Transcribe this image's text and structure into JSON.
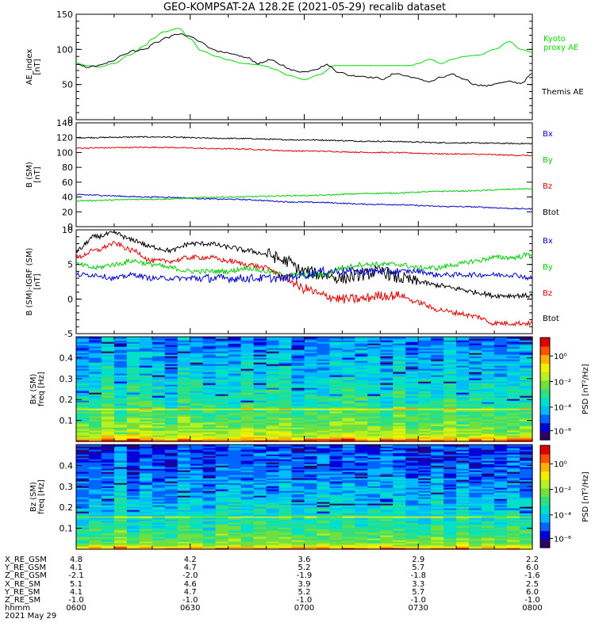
{
  "title": "GEO-KOMPSAT-2A 128.2E (2021-05-29) recalib dataset",
  "colors": {
    "black": "#000000",
    "red": "#dd0000",
    "blue": "#0000cc",
    "green": "#00cc00",
    "kyoto_green": "#00dd00"
  },
  "chart_data": [
    {
      "type": "line",
      "panel": "ae",
      "ylabel": "AE_index\n[nT]",
      "ylim": [
        0,
        150
      ],
      "yticks": [
        "0",
        "50",
        "100",
        "150"
      ],
      "x": [
        "0600",
        "0630",
        "0700",
        "0730",
        "0800"
      ],
      "series": [
        {
          "name": "Kyoto\nproxy AE",
          "color": "#00dd00",
          "t": [
            0,
            3,
            6,
            10,
            14,
            18,
            20,
            23,
            27,
            30,
            33,
            37,
            40,
            44,
            48,
            50,
            52,
            56,
            60,
            64,
            68,
            72,
            76,
            80,
            85,
            88,
            90,
            93,
            96,
            99,
            102,
            106,
            110,
            114,
            117,
            120
          ],
          "v": [
            80,
            77,
            75,
            80,
            92,
            105,
            115,
            125,
            130,
            115,
            98,
            90,
            85,
            80,
            78,
            76,
            72,
            63,
            57,
            64,
            77,
            77,
            77,
            77,
            77,
            77,
            80,
            86,
            80,
            86,
            90,
            92,
            100,
            111,
            100,
            96
          ]
        },
        {
          "name": "Themis AE",
          "color": "#000000",
          "t": [
            0,
            3,
            6,
            9,
            12,
            15,
            18,
            21,
            24,
            27,
            30,
            33,
            36,
            39,
            42,
            45,
            48,
            51,
            54,
            57,
            60,
            63,
            66,
            69,
            72,
            75,
            78,
            81,
            84,
            87,
            90,
            93,
            96,
            99,
            102,
            105,
            108,
            111,
            114,
            117,
            120
          ],
          "v": [
            78,
            75,
            77,
            82,
            92,
            98,
            100,
            110,
            117,
            122,
            118,
            110,
            100,
            95,
            92,
            88,
            80,
            85,
            78,
            70,
            68,
            72,
            78,
            68,
            63,
            62,
            60,
            58,
            66,
            62,
            58,
            54,
            60,
            64,
            58,
            50,
            48,
            52,
            54,
            52,
            65
          ]
        }
      ]
    },
    {
      "type": "line",
      "panel": "bsm",
      "ylabel": "B (SM)\n[nT]",
      "ylim": [
        0,
        140
      ],
      "yticks": [
        "0",
        "20",
        "40",
        "60",
        "80",
        "100",
        "120",
        "140"
      ],
      "series": [
        {
          "name": "Bx",
          "color": "#000000",
          "t": [
            0,
            20,
            40,
            60,
            80,
            100,
            120
          ],
          "v": [
            120,
            121,
            119,
            117,
            115,
            113,
            112
          ]
        },
        {
          "name": "By",
          "color": "#dd0000",
          "t": [
            0,
            20,
            40,
            60,
            80,
            100,
            120
          ],
          "v": [
            106,
            107,
            105,
            102,
            100,
            98,
            96
          ]
        },
        {
          "name": "Bz",
          "color": "#0000cc",
          "t": [
            0,
            20,
            40,
            60,
            80,
            100,
            120
          ],
          "v": [
            43,
            40,
            37,
            33,
            30,
            27,
            24
          ]
        },
        {
          "name": "Btot",
          "color": "#00cc00",
          "t": [
            0,
            20,
            40,
            60,
            80,
            100,
            120
          ],
          "v": [
            35,
            37,
            40,
            42,
            45,
            48,
            51
          ]
        }
      ]
    },
    {
      "type": "line",
      "panel": "digrf",
      "ylabel": "B (SM)-IGRF (SM)\n[nT]",
      "ylim": [
        -5,
        10
      ],
      "yticks": [
        "-5",
        "0",
        "5",
        "10"
      ],
      "series": [
        {
          "name": "Bx",
          "color": "#000000",
          "t": [
            0,
            5,
            10,
            15,
            20,
            25,
            30,
            35,
            40,
            45,
            50,
            55,
            60,
            65,
            70,
            75,
            80,
            85,
            90,
            95,
            100,
            105,
            110,
            115,
            120
          ],
          "v": [
            7,
            9,
            9.5,
            8.5,
            7.5,
            7,
            8,
            8,
            7.5,
            7,
            6.5,
            5.5,
            4,
            3.5,
            3,
            3.5,
            4,
            3,
            2.5,
            2,
            1.5,
            1,
            0.5,
            0.5,
            0.5
          ]
        },
        {
          "name": "By",
          "color": "#00cc00",
          "t": [
            0,
            5,
            10,
            15,
            20,
            25,
            30,
            35,
            40,
            45,
            50,
            55,
            60,
            65,
            70,
            75,
            80,
            85,
            90,
            95,
            100,
            105,
            110,
            115,
            120
          ],
          "v": [
            5,
            4.5,
            5,
            5.5,
            5,
            4.5,
            4,
            4,
            4,
            4.5,
            4,
            3.5,
            3.5,
            3.5,
            4.5,
            5,
            5,
            5,
            4.5,
            4.5,
            5,
            5.5,
            6,
            6,
            6.5
          ]
        },
        {
          "name": "Bz",
          "color": "#dd0000",
          "t": [
            0,
            5,
            10,
            15,
            20,
            25,
            30,
            35,
            40,
            45,
            50,
            55,
            60,
            65,
            70,
            75,
            80,
            85,
            90,
            95,
            100,
            105,
            110,
            115,
            120
          ],
          "v": [
            6,
            7,
            8,
            7,
            5.5,
            5.5,
            6,
            6,
            5.5,
            5,
            4.5,
            3,
            1.5,
            0.5,
            0,
            0,
            0.5,
            0.5,
            -0.5,
            -1.5,
            -2,
            -2.5,
            -3.5,
            -3.5,
            -3.5
          ]
        },
        {
          "name": "Btot",
          "color": "#0000cc",
          "t": [
            0,
            5,
            10,
            15,
            20,
            25,
            30,
            35,
            40,
            45,
            50,
            55,
            60,
            65,
            70,
            75,
            80,
            85,
            90,
            95,
            100,
            105,
            110,
            115,
            120
          ],
          "v": [
            3.5,
            3.5,
            3,
            3.5,
            3,
            3,
            3,
            3,
            3,
            3,
            3,
            3,
            3.5,
            4,
            4,
            4,
            4,
            4,
            4,
            3.5,
            3.5,
            3.5,
            3.5,
            3.5,
            3
          ]
        }
      ]
    },
    {
      "type": "heatmap",
      "panel": "bx_spec",
      "ylabel": "Bx (SM)\nfreq [Hz]",
      "yticks": [
        "0.1",
        "0.2",
        "0.3",
        "0.4"
      ],
      "ylim": [
        0,
        0.5
      ],
      "colorbar": {
        "label": "PSD [nT²/Hz]",
        "ticks": [
          "10⁰",
          "10⁻²",
          "10⁻⁴",
          "10⁻⁶"
        ]
      }
    },
    {
      "type": "heatmap",
      "panel": "bz_spec",
      "ylabel": "Bz (SM)\nfreq [Hz]",
      "yticks": [
        "0.1",
        "0.2",
        "0.3",
        "0.4"
      ],
      "ylim": [
        0,
        0.5
      ],
      "colorbar": {
        "label": "PSD [nT²/Hz]",
        "ticks": [
          "10⁰",
          "10⁻²",
          "10⁻⁴",
          "10⁻⁶"
        ]
      }
    }
  ],
  "ephemeris": {
    "labels": [
      "X_RE_GSM",
      "Y_RE_GSM",
      "Z_RE_GSM",
      "X_RE_SM",
      "Y_RE_SM",
      "Z_RE_SM",
      "hhmm",
      "2021 May 29"
    ],
    "columns": [
      [
        "4.8",
        "4.1",
        "-2.1",
        "5.1",
        "4.1",
        "-1.0",
        "0600"
      ],
      [
        "4.2",
        "4.7",
        "-2.0",
        "4.6",
        "4.7",
        "-1.0",
        "0630"
      ],
      [
        "3.6",
        "5.2",
        "-1.9",
        "3.9",
        "5.2",
        "-1.0",
        "0700"
      ],
      [
        "2.9",
        "5.7",
        "-1.8",
        "3.3",
        "5.7",
        "-1.0",
        "0730"
      ],
      [
        "2.2",
        "6.0",
        "-1.6",
        "2.5",
        "6.0",
        "-1.0",
        "0800"
      ]
    ]
  }
}
